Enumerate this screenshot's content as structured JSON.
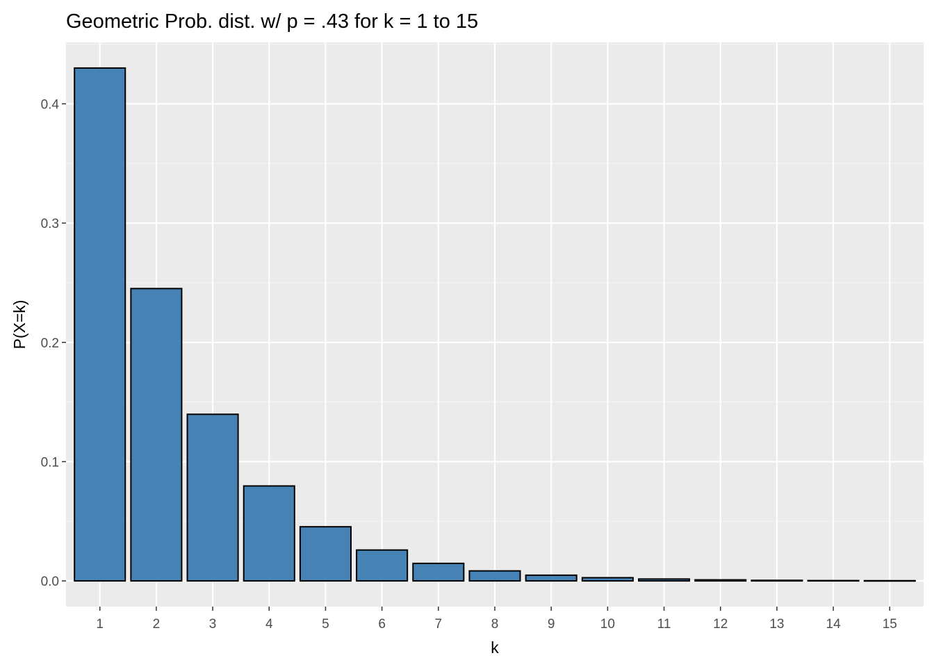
{
  "chart_data": {
    "type": "bar",
    "title": "Geometric Prob. dist. w/ p = .43 for k = 1 to 15",
    "xlabel": "k",
    "ylabel": "P(X=k)",
    "categories": [
      "1",
      "2",
      "3",
      "4",
      "5",
      "6",
      "7",
      "8",
      "9",
      "10",
      "11",
      "12",
      "13",
      "14",
      "15"
    ],
    "values": [
      0.43,
      0.2451,
      0.1397,
      0.0796,
      0.0454,
      0.0259,
      0.0147,
      0.0084,
      0.0048,
      0.0027,
      0.0016,
      0.0009,
      0.0005,
      0.0003,
      0.0002
    ],
    "yticks": [
      0.0,
      0.1,
      0.2,
      0.3,
      0.4
    ],
    "ytick_labels": [
      "0.0",
      "0.1",
      "0.2",
      "0.3",
      "0.4"
    ],
    "ylim": [
      -0.0215,
      0.4515
    ],
    "grid": true,
    "colors": {
      "bar_fill": "#4682B4",
      "bar_outline": "#000000",
      "panel_background": "#EBEBEB",
      "grid_major": "#FFFFFF",
      "grid_minor": "#F5F5F5"
    }
  }
}
